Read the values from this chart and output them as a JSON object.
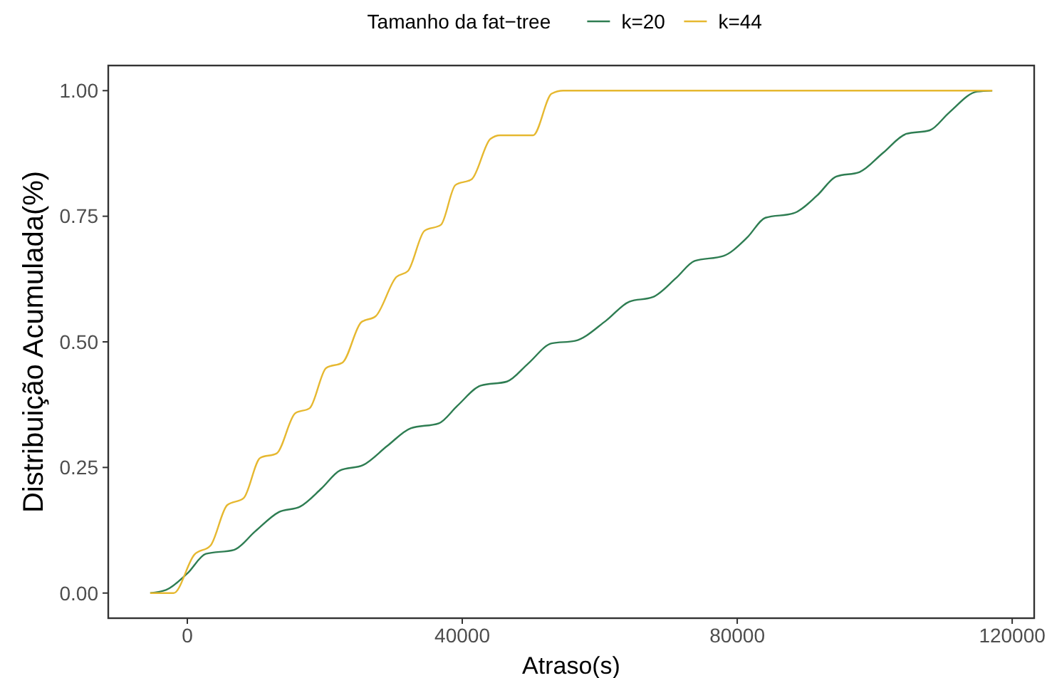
{
  "chart_data": {
    "type": "line",
    "xlabel": "Atraso(s)",
    "ylabel": "Distribuição Acumulada(%)",
    "legend_title": "Tamanho da fat−tree",
    "legend": "top",
    "grid": false,
    "marker": "none",
    "line_style": "solid",
    "xlim": [
      -11500,
      123200
    ],
    "ylim": [
      -0.05,
      1.05
    ],
    "xticks": [
      0,
      40000,
      80000,
      120000
    ],
    "yticks": [
      {
        "value": 0,
        "label": "0.00"
      },
      {
        "value": 0.25,
        "label": "0.25"
      },
      {
        "value": 0.5,
        "label": "0.50"
      },
      {
        "value": 0.75,
        "label": "0.75"
      },
      {
        "value": 1,
        "label": "1.00"
      }
    ],
    "series": [
      {
        "name": "k=20",
        "color": "#2e7d52",
        "x": [
          -5400,
          -3100,
          0,
          2700,
          6800,
          9900,
          13300,
          16400,
          19500,
          22200,
          25600,
          29100,
          32500,
          36600,
          39300,
          42700,
          46500,
          49600,
          53000,
          56400,
          60900,
          64300,
          67700,
          71100,
          73800,
          78000,
          81400,
          84100,
          88200,
          91600,
          94400,
          97800,
          101200,
          104600,
          108000,
          110800,
          114900,
          117100
        ],
        "values": [
          0,
          0.006,
          0.039,
          0.078,
          0.086,
          0.123,
          0.161,
          0.172,
          0.208,
          0.244,
          0.255,
          0.293,
          0.328,
          0.338,
          0.373,
          0.413,
          0.421,
          0.457,
          0.497,
          0.502,
          0.542,
          0.58,
          0.589,
          0.627,
          0.661,
          0.671,
          0.707,
          0.747,
          0.756,
          0.791,
          0.829,
          0.838,
          0.876,
          0.914,
          0.921,
          0.956,
          0.998,
          1
        ]
      },
      {
        "name": "k=44",
        "color": "#e6b830",
        "x": [
          -5400,
          -2000,
          1000,
          3400,
          5800,
          8200,
          10600,
          13000,
          15700,
          17800,
          20200,
          22600,
          25300,
          27400,
          30400,
          32100,
          34500,
          36900,
          39000,
          41400,
          44100,
          45500,
          50300,
          53000,
          54700,
          117100
        ],
        "values": [
          0,
          0,
          0.076,
          0.095,
          0.175,
          0.189,
          0.269,
          0.278,
          0.358,
          0.368,
          0.448,
          0.459,
          0.539,
          0.551,
          0.629,
          0.641,
          0.721,
          0.733,
          0.812,
          0.824,
          0.904,
          0.911,
          0.911,
          0.994,
          1,
          1
        ]
      }
    ]
  }
}
